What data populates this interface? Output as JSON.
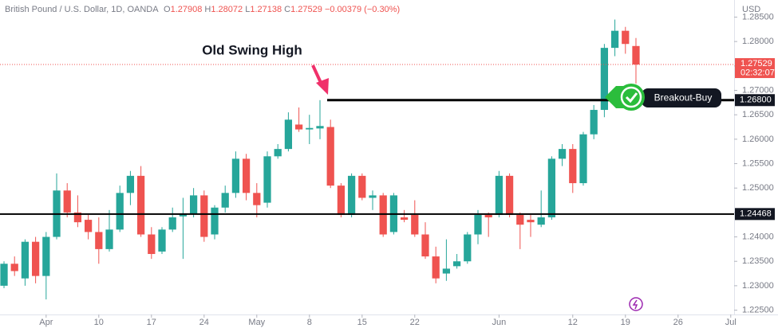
{
  "chart_data": {
    "type": "candlestick",
    "symbol": "British Pound / U.S. Dollar, 1D, OANDA",
    "ohlc_labels": [
      "O",
      "H",
      "L",
      "C"
    ],
    "change": "−0.00379 (−0.30%)",
    "currency": "USD",
    "countdown": "02:32:07",
    "annotations": [
      "Old Swing High",
      "Breakout-Buy"
    ],
    "up_color": "#26a69a",
    "down_color": "#ef5350",
    "x": [
      0,
      1,
      2,
      3,
      4,
      5,
      6,
      7,
      8,
      9,
      10,
      11,
      12,
      13,
      14,
      15,
      16,
      17,
      18,
      19,
      20,
      21,
      22,
      23,
      24,
      25,
      26,
      27,
      28,
      29,
      30,
      31,
      32,
      33,
      34,
      35,
      36,
      37,
      38,
      39,
      40,
      41,
      42,
      43,
      44,
      45,
      46,
      47,
      48,
      49,
      50,
      51,
      52,
      53,
      54,
      55,
      56,
      57,
      58,
      59,
      60
    ],
    "open": [
      1.23,
      1.2345,
      1.2315,
      1.239,
      1.232,
      1.24,
      1.2495,
      1.245,
      1.2435,
      1.241,
      1.2375,
      1.2415,
      1.249,
      1.2525,
      1.2405,
      1.237,
      1.2415,
      1.2442,
      1.2446,
      1.2485,
      1.2405,
      1.246,
      1.249,
      1.256,
      1.249,
      1.247,
      1.2565,
      1.258,
      1.263,
      1.262,
      1.2622,
      1.2625,
      1.2505,
      1.2445,
      1.2525,
      1.248,
      1.2485,
      1.241,
      1.244,
      1.2445,
      1.2405,
      1.236,
      1.2325,
      1.234,
      1.235,
      1.2405,
      1.2445,
      1.2445,
      1.2525,
      1.2445,
      1.2435,
      1.2425,
      1.244,
      1.256,
      1.258,
      1.251,
      1.261,
      1.266,
      1.2787,
      1.2822,
      1.27908
    ],
    "high": [
      1.235,
      1.236,
      1.2395,
      1.24,
      1.241,
      1.253,
      1.251,
      1.2485,
      1.2445,
      1.244,
      1.2455,
      1.2505,
      1.2535,
      1.2545,
      1.242,
      1.242,
      1.246,
      1.248,
      1.25,
      1.2495,
      1.2465,
      1.2505,
      1.2575,
      1.257,
      1.251,
      1.2575,
      1.259,
      1.2655,
      1.2665,
      1.265,
      1.268,
      1.264,
      1.251,
      1.253,
      1.253,
      1.2495,
      1.249,
      1.249,
      1.2455,
      1.2475,
      1.243,
      1.238,
      1.2395,
      1.2365,
      1.241,
      1.2455,
      1.245,
      1.2535,
      1.253,
      1.245,
      1.2445,
      1.2495,
      1.2565,
      1.259,
      1.259,
      1.2615,
      1.267,
      1.2795,
      1.2845,
      1.283,
      1.28072
    ],
    "low": [
      1.2295,
      1.232,
      1.23,
      1.2305,
      1.2272,
      1.2395,
      1.244,
      1.242,
      1.2395,
      1.2345,
      1.237,
      1.241,
      1.2465,
      1.24,
      1.2355,
      1.2365,
      1.241,
      1.2355,
      1.244,
      1.239,
      1.2395,
      1.245,
      1.248,
      1.2475,
      1.244,
      1.246,
      1.256,
      1.2575,
      1.2615,
      1.259,
      1.26,
      1.25,
      1.244,
      1.244,
      1.2475,
      1.2455,
      1.24,
      1.2405,
      1.243,
      1.24,
      1.2355,
      1.2305,
      1.231,
      1.2335,
      1.2345,
      1.2385,
      1.24,
      1.244,
      1.244,
      1.2375,
      1.24,
      1.242,
      1.2435,
      1.2545,
      1.249,
      1.2505,
      1.26,
      1.2645,
      1.277,
      1.2775,
      1.27138
    ],
    "close": [
      1.2345,
      1.233,
      1.239,
      1.232,
      1.24,
      1.2495,
      1.245,
      1.243,
      1.241,
      1.2375,
      1.2415,
      1.249,
      1.2525,
      1.2405,
      1.2365,
      1.2415,
      1.244,
      1.2446,
      1.2485,
      1.24,
      1.246,
      1.249,
      1.256,
      1.249,
      1.2465,
      1.2565,
      1.258,
      1.264,
      1.262,
      1.2623,
      1.2627,
      1.2505,
      1.2445,
      1.2525,
      1.248,
      1.2485,
      1.2405,
      1.2485,
      1.2435,
      1.2405,
      1.236,
      1.2315,
      1.2335,
      1.235,
      1.2405,
      1.2445,
      1.244,
      1.2525,
      1.2445,
      1.2425,
      1.243,
      1.244,
      1.256,
      1.258,
      1.251,
      1.261,
      1.266,
      1.2787,
      1.2822,
      1.2795,
      1.27529
    ],
    "xlim": [
      -0.38,
      69.32
    ],
    "xticks": [
      {
        "value": 4,
        "label": "Apr"
      },
      {
        "value": 9,
        "label": "10"
      },
      {
        "value": 14,
        "label": "17"
      },
      {
        "value": 19,
        "label": "24"
      },
      {
        "value": 24,
        "label": "May"
      },
      {
        "value": 29,
        "label": "8"
      },
      {
        "value": 34,
        "label": "15"
      },
      {
        "value": 39,
        "label": "22"
      },
      {
        "value": 47,
        "label": "Jun"
      },
      {
        "value": 54,
        "label": "12"
      },
      {
        "value": 59,
        "label": "19"
      },
      {
        "value": 64,
        "label": "26"
      },
      {
        "value": 69,
        "label": "Jul"
      }
    ],
    "ylim": [
      1.2233,
      1.2885
    ],
    "yticks": [
      {
        "value": 1.225,
        "label": "1.22500"
      },
      {
        "value": 1.23,
        "label": "1.23000"
      },
      {
        "value": 1.235,
        "label": "1.23500"
      },
      {
        "value": 1.24,
        "label": "1.24000"
      },
      {
        "value": 1.245,
        "label": "1.24500"
      },
      {
        "value": 1.25,
        "label": "1.25000"
      },
      {
        "value": 1.255,
        "label": "1.25500"
      },
      {
        "value": 1.26,
        "label": "1.26000"
      },
      {
        "value": 1.265,
        "label": "1.26500"
      },
      {
        "value": 1.27,
        "label": "1.27000"
      },
      {
        "value": 1.275,
        "label": "1.27500"
      },
      {
        "value": 1.28,
        "label": "1.28000"
      },
      {
        "value": 1.285,
        "label": "1.28500"
      }
    ],
    "levels": [
      {
        "value": 1.268,
        "label": "1.26800"
      },
      {
        "value": 1.24468,
        "label": "1.24468"
      }
    ]
  }
}
